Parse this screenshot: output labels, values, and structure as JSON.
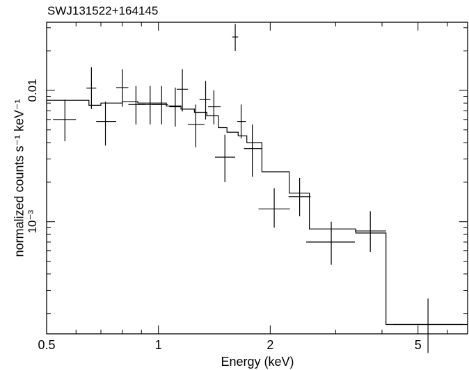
{
  "chart_data": {
    "type": "scatter",
    "title": "SWJ131522+164145",
    "xlabel": "Energy (keV)",
    "ylabel": "normalized counts s⁻¹ keV⁻¹",
    "xscale": "log",
    "yscale": "log",
    "xlim": [
      0.5,
      6.8
    ],
    "ylim": [
      0.00014,
      0.033
    ],
    "xticks": [
      {
        "value": 0.5,
        "label": "0.5"
      },
      {
        "value": 1,
        "label": "1"
      },
      {
        "value": 2,
        "label": "2"
      },
      {
        "value": 5,
        "label": "5"
      }
    ],
    "yticks": [
      {
        "value": 0.01,
        "label": "0.01"
      },
      {
        "value": 0.001,
        "label": "10⁻³"
      }
    ],
    "grid": false,
    "series": [
      {
        "kind": "data_with_errorbars",
        "points": [
          {
            "xlo": 0.52,
            "xhi": 0.6,
            "x": 0.56,
            "y": 0.006,
            "ylo": 0.0041,
            "yhi": 0.0085
          },
          {
            "xlo": 0.64,
            "xhi": 0.68,
            "x": 0.66,
            "y": 0.0104,
            "ylo": 0.0072,
            "yhi": 0.015
          },
          {
            "xlo": 0.68,
            "xhi": 0.77,
            "x": 0.72,
            "y": 0.0058,
            "ylo": 0.0038,
            "yhi": 0.0082
          },
          {
            "xlo": 0.77,
            "xhi": 0.83,
            "x": 0.8,
            "y": 0.0105,
            "ylo": 0.0075,
            "yhi": 0.0145
          },
          {
            "xlo": 0.83,
            "xhi": 0.92,
            "x": 0.87,
            "y": 0.0078,
            "ylo": 0.0055,
            "yhi": 0.0108
          },
          {
            "xlo": 0.88,
            "xhi": 1.02,
            "x": 0.95,
            "y": 0.0078,
            "ylo": 0.0055,
            "yhi": 0.0108
          },
          {
            "xlo": 0.96,
            "xhi": 1.06,
            "x": 1.02,
            "y": 0.0078,
            "ylo": 0.0055,
            "yhi": 0.0108
          },
          {
            "xlo": 1.07,
            "xhi": 1.15,
            "x": 1.11,
            "y": 0.0075,
            "ylo": 0.0053,
            "yhi": 0.0105
          },
          {
            "xlo": 1.12,
            "xhi": 1.2,
            "x": 1.16,
            "y": 0.0102,
            "ylo": 0.0069,
            "yhi": 0.0145
          },
          {
            "xlo": 1.2,
            "xhi": 1.33,
            "x": 1.26,
            "y": 0.0055,
            "ylo": 0.0037,
            "yhi": 0.0078
          },
          {
            "xlo": 1.29,
            "xhi": 1.38,
            "x": 1.34,
            "y": 0.0085,
            "ylo": 0.006,
            "yhi": 0.0118
          },
          {
            "xlo": 1.36,
            "xhi": 1.47,
            "x": 1.41,
            "y": 0.0075,
            "ylo": 0.0055,
            "yhi": 0.01
          },
          {
            "xlo": 1.58,
            "xhi": 1.64,
            "x": 1.61,
            "y": 0.0255,
            "ylo": 0.02,
            "yhi": 0.032
          },
          {
            "xlo": 1.42,
            "xhi": 1.61,
            "x": 1.51,
            "y": 0.0031,
            "ylo": 0.002,
            "yhi": 0.0046
          },
          {
            "xlo": 1.63,
            "xhi": 1.72,
            "x": 1.67,
            "y": 0.0058,
            "ylo": 0.0043,
            "yhi": 0.0078
          },
          {
            "xlo": 1.7,
            "xhi": 1.9,
            "x": 1.79,
            "y": 0.0036,
            "ylo": 0.0022,
            "yhi": 0.0055
          },
          {
            "xlo": 1.86,
            "xhi": 2.26,
            "x": 2.05,
            "y": 0.00125,
            "ylo": 0.0009,
            "yhi": 0.0018
          },
          {
            "xlo": 2.24,
            "xhi": 2.57,
            "x": 2.4,
            "y": 0.00155,
            "ylo": 0.0011,
            "yhi": 0.00215
          },
          {
            "xlo": 2.5,
            "xhi": 3.38,
            "x": 2.92,
            "y": 0.0007,
            "ylo": 0.00047,
            "yhi": 0.001
          },
          {
            "xlo": 3.38,
            "xhi": 4.1,
            "x": 3.72,
            "y": 0.00085,
            "ylo": 0.00059,
            "yhi": 0.0012
          },
          {
            "xlo": 4.28,
            "xhi": 6.6,
            "x": 5.32,
            "y": 0.000165,
            "ylo": 0.0001,
            "yhi": 0.00026
          }
        ]
      },
      {
        "kind": "model_step",
        "steps": [
          {
            "xlo": 0.5,
            "xhi": 0.65,
            "y": 0.0084
          },
          {
            "xlo": 0.65,
            "xhi": 0.7,
            "y": 0.0077
          },
          {
            "xlo": 0.7,
            "xhi": 0.8,
            "y": 0.008
          },
          {
            "xlo": 0.8,
            "xhi": 0.88,
            "y": 0.0082
          },
          {
            "xlo": 0.88,
            "xhi": 1.05,
            "y": 0.008
          },
          {
            "xlo": 1.05,
            "xhi": 1.15,
            "y": 0.0076
          },
          {
            "xlo": 1.15,
            "xhi": 1.25,
            "y": 0.0072
          },
          {
            "xlo": 1.25,
            "xhi": 1.35,
            "y": 0.0068
          },
          {
            "xlo": 1.35,
            "xhi": 1.45,
            "y": 0.0064
          },
          {
            "xlo": 1.45,
            "xhi": 1.53,
            "y": 0.0052
          },
          {
            "xlo": 1.53,
            "xhi": 1.64,
            "y": 0.0048
          },
          {
            "xlo": 1.64,
            "xhi": 1.73,
            "y": 0.0045
          },
          {
            "xlo": 1.73,
            "xhi": 1.9,
            "y": 0.004
          },
          {
            "xlo": 1.9,
            "xhi": 2.25,
            "y": 0.0024
          },
          {
            "xlo": 2.25,
            "xhi": 2.55,
            "y": 0.00165
          },
          {
            "xlo": 2.55,
            "xhi": 3.4,
            "y": 0.00088
          },
          {
            "xlo": 3.4,
            "xhi": 4.1,
            "y": 0.00082
          },
          {
            "xlo": 4.1,
            "xhi": 6.8,
            "y": 0.000165
          }
        ]
      }
    ]
  }
}
